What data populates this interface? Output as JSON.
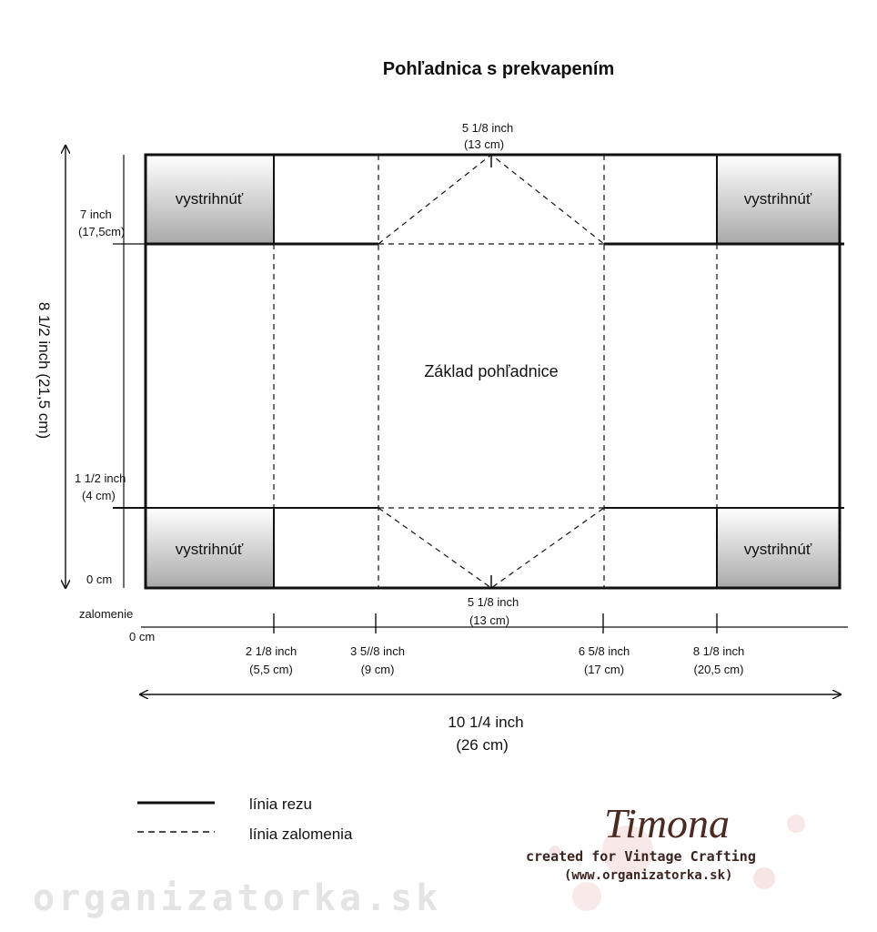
{
  "title": "Pohľadnica s prekvapením",
  "corner_label": "vystrihnúť",
  "base_label": "Základ pohľadnice",
  "top_dim": {
    "line1": "5 1/8 inch",
    "line2": "(13 cm)"
  },
  "bottom_dim": {
    "line1": "5 1/8 inch",
    "line2": "(13 cm)"
  },
  "left_dims": {
    "top": {
      "line1": "7 inch",
      "line2": "(17,5cm)"
    },
    "mid": {
      "line1": "1 1/2 inch",
      "line2": "(4 cm)"
    },
    "zero": "0 cm"
  },
  "vertical_total": "8 1/2 inch (21,5 cm)",
  "fold_label": "zalomenie",
  "axis_zero": "0 cm",
  "axis_ticks": [
    {
      "line1": "2 1/8 inch",
      "line2": "(5,5 cm)"
    },
    {
      "line1": "3 5//8 inch",
      "line2": "(9 cm)"
    },
    {
      "line1": "6 5/8 inch",
      "line2": "(17 cm)"
    },
    {
      "line1": "8 1/8 inch",
      "line2": "(20,5 cm)"
    }
  ],
  "horizontal_total": {
    "line1": "10 1/4 inch",
    "line2": "(26 cm)"
  },
  "legend": {
    "cut": "línia rezu",
    "fold": "línia zalomenia"
  },
  "signature": {
    "name": "Timona",
    "created": "created for Vintage Crafting",
    "url": "(www.organizatorka.sk)"
  },
  "watermark": "organizatorka.sk"
}
